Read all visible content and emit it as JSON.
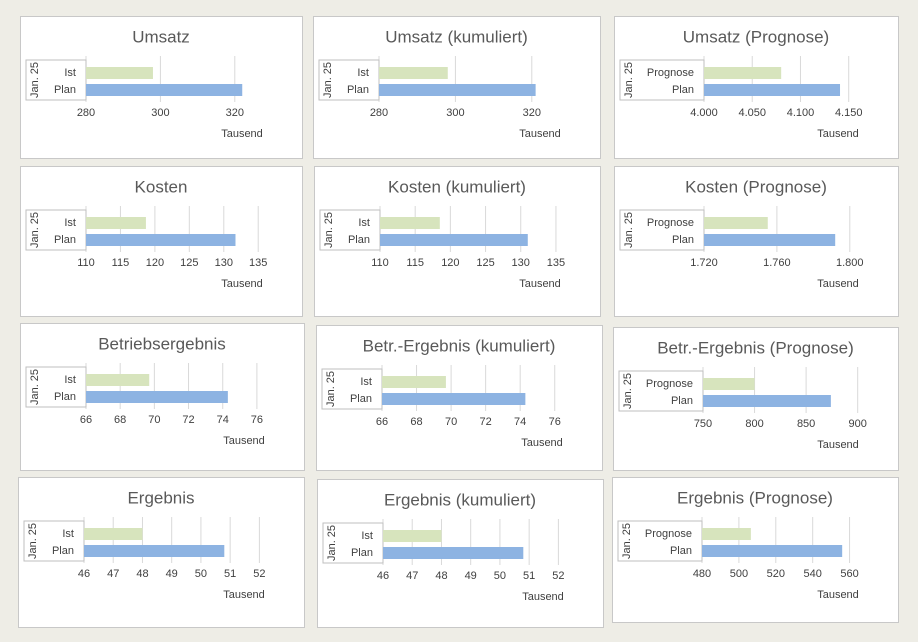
{
  "chart_data": [
    {
      "type": "barh",
      "title": "Umsatz",
      "group": "Jan. 25",
      "categories": [
        "Ist",
        "Plan"
      ],
      "values": [
        298,
        322
      ],
      "colors": [
        "#d7e4bd",
        "#8db3e2"
      ],
      "xlim": [
        280,
        330
      ],
      "xticks": [
        280,
        300,
        320
      ],
      "xlabel": "Tausend",
      "grid": true
    },
    {
      "type": "barh",
      "title": "Umsatz (kumuliert)",
      "group": "Jan. 25",
      "categories": [
        "Ist",
        "Plan"
      ],
      "values": [
        298,
        321
      ],
      "colors": [
        "#d7e4bd",
        "#8db3e2"
      ],
      "xlim": [
        280,
        330
      ],
      "xticks": [
        280,
        300,
        320
      ],
      "xlabel": "Tausend",
      "grid": true
    },
    {
      "type": "barh",
      "title": "Umsatz (Prognose)",
      "group": "Jan. 25",
      "categories": [
        "Prognose",
        "Plan"
      ],
      "values": [
        4080,
        4141
      ],
      "colors": [
        "#d7e4bd",
        "#8db3e2"
      ],
      "xlim": [
        4000,
        4170
      ],
      "xticks": [
        {
          "value": 4000,
          "label": "4.000"
        },
        {
          "value": 4050,
          "label": "4.050"
        },
        {
          "value": 4100,
          "label": "4.100"
        },
        {
          "value": 4150,
          "label": "4.150"
        }
      ],
      "xlabel": "Tausend",
      "grid": true
    },
    {
      "type": "barh",
      "title": "Kosten",
      "group": "Jan. 25",
      "categories": [
        "Ist",
        "Plan"
      ],
      "values": [
        118.7,
        131.7
      ],
      "colors": [
        "#d7e4bd",
        "#8db3e2"
      ],
      "xlim": [
        110,
        137
      ],
      "xticks": [
        110,
        115,
        120,
        125,
        130,
        135
      ],
      "xlabel": "Tausend",
      "grid": true
    },
    {
      "type": "barh",
      "title": "Kosten (kumuliert)",
      "group": "Jan. 25",
      "categories": [
        "Ist",
        "Plan"
      ],
      "values": [
        118.5,
        131
      ],
      "colors": [
        "#d7e4bd",
        "#8db3e2"
      ],
      "xlim": [
        110,
        137
      ],
      "xticks": [
        110,
        115,
        120,
        125,
        130,
        135
      ],
      "xlabel": "Tausend",
      "grid": true
    },
    {
      "type": "barh",
      "title": "Kosten (Prognose)",
      "group": "Jan. 25",
      "categories": [
        "Prognose",
        "Plan"
      ],
      "values": [
        1755,
        1792
      ],
      "colors": [
        "#d7e4bd",
        "#8db3e2"
      ],
      "xlim": [
        1720,
        1810
      ],
      "xticks": [
        {
          "value": 1720,
          "label": "1.720"
        },
        {
          "value": 1760,
          "label": "1.760"
        },
        {
          "value": 1800,
          "label": "1.800"
        }
      ],
      "xlabel": "Tausend",
      "grid": true
    },
    {
      "type": "barh",
      "title": "Betriebsergebnis",
      "group": "Jan. 25",
      "categories": [
        "Ist",
        "Plan"
      ],
      "values": [
        69.7,
        74.3
      ],
      "colors": [
        "#d7e4bd",
        "#8db3e2"
      ],
      "xlim": [
        66,
        77
      ],
      "xticks": [
        66,
        68,
        70,
        72,
        74,
        76
      ],
      "xlabel": "Tausend",
      "grid": true
    },
    {
      "type": "barh",
      "title": "Betr.-Ergebnis (kumuliert)",
      "group": "Jan. 25",
      "categories": [
        "Ist",
        "Plan"
      ],
      "values": [
        69.7,
        74.3
      ],
      "colors": [
        "#d7e4bd",
        "#8db3e2"
      ],
      "xlim": [
        66,
        77
      ],
      "xticks": [
        66,
        68,
        70,
        72,
        74,
        76
      ],
      "xlabel": "Tausend",
      "grid": true
    },
    {
      "type": "barh",
      "title": "Betr.-Ergebnis (Prognose)",
      "group": "Jan. 25",
      "categories": [
        "Prognose",
        "Plan"
      ],
      "values": [
        800,
        874
      ],
      "colors": [
        "#d7e4bd",
        "#8db3e2"
      ],
      "xlim": [
        750,
        910
      ],
      "xticks": [
        750,
        800,
        850,
        900
      ],
      "xlabel": "Tausend",
      "grid": true
    },
    {
      "type": "barh",
      "title": "Ergebnis",
      "group": "Jan. 25",
      "categories": [
        "Ist",
        "Plan"
      ],
      "values": [
        48,
        50.8
      ],
      "colors": [
        "#d7e4bd",
        "#8db3e2"
      ],
      "xlim": [
        46,
        52.5
      ],
      "xticks": [
        46,
        47,
        48,
        49,
        50,
        51,
        52
      ],
      "xlabel": "Tausend",
      "grid": true
    },
    {
      "type": "barh",
      "title": "Ergebnis (kumuliert)",
      "group": "Jan. 25",
      "categories": [
        "Ist",
        "Plan"
      ],
      "values": [
        48,
        50.8
      ],
      "colors": [
        "#d7e4bd",
        "#8db3e2"
      ],
      "xlim": [
        46,
        52.5
      ],
      "xticks": [
        46,
        47,
        48,
        49,
        50,
        51,
        52
      ],
      "xlabel": "Tausend",
      "grid": true
    },
    {
      "type": "barh",
      "title": "Ergebnis (Prognose)",
      "group": "Jan. 25",
      "categories": [
        "Prognose",
        "Plan"
      ],
      "values": [
        506.5,
        556
      ],
      "colors": [
        "#d7e4bd",
        "#8db3e2"
      ],
      "xlim": [
        480,
        570
      ],
      "xticks": [
        480,
        500,
        520,
        540,
        560
      ],
      "xlabel": "Tausend",
      "grid": true
    }
  ]
}
